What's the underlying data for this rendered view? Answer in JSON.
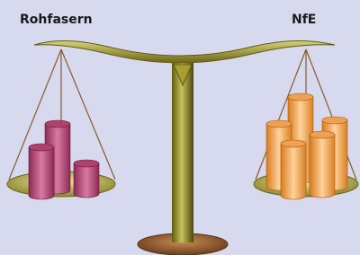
{
  "labels": {
    "left": "Rohfasern",
    "right": "NfE"
  }
}
